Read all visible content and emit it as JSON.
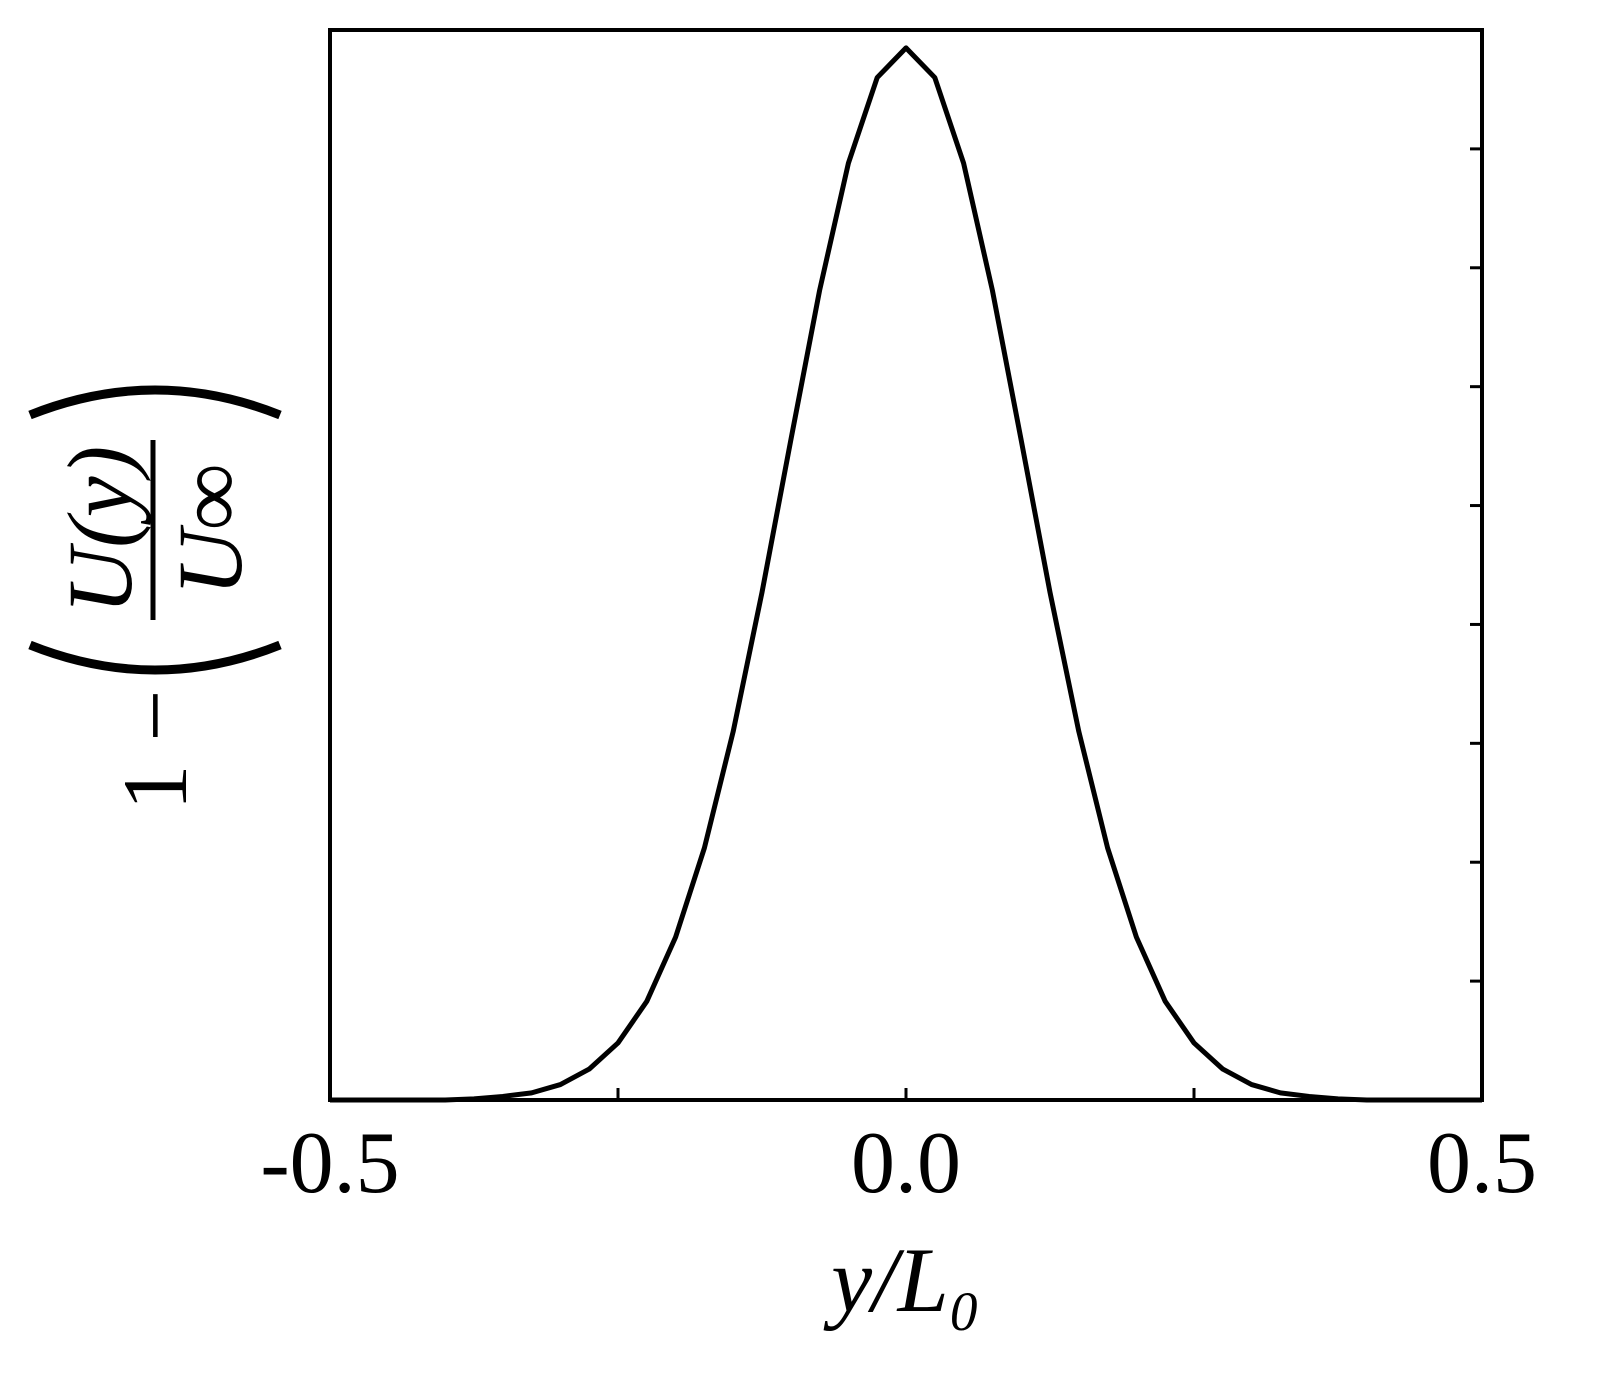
{
  "chart_data": {
    "type": "line",
    "xlabel": "y/L₀",
    "ylabel": {
      "prefix": "1 −",
      "numerator": "U(y)",
      "denominator": "U∞"
    },
    "x": [
      -0.5,
      -0.475,
      -0.45,
      -0.425,
      -0.4,
      -0.375,
      -0.35,
      -0.325,
      -0.3,
      -0.275,
      -0.25,
      -0.225,
      -0.2,
      -0.175,
      -0.15,
      -0.125,
      -0.1,
      -0.075,
      -0.05,
      -0.025,
      0,
      0.025,
      0.05,
      0.075,
      0.1,
      0.125,
      0.15,
      0.175,
      0.2,
      0.225,
      0.25,
      0.275,
      0.3,
      0.325,
      0.35,
      0.375,
      0.4,
      0.425,
      0.45,
      0.475,
      0.5
    ],
    "series": [
      {
        "color": "#000000",
        "values": [
          0,
          0,
          0,
          0,
          0,
          0.001,
          0.003,
          0.006,
          0.013,
          0.026,
          0.048,
          0.083,
          0.137,
          0.212,
          0.31,
          0.427,
          0.555,
          0.681,
          0.788,
          0.86,
          0.885,
          0.86,
          0.788,
          0.681,
          0.555,
          0.427,
          0.31,
          0.212,
          0.137,
          0.083,
          0.048,
          0.026,
          0.013,
          0.006,
          0.003,
          0.001,
          0,
          0,
          0,
          0,
          0
        ]
      }
    ],
    "xlim": [
      -0.5,
      0.5
    ],
    "xticks": [
      {
        "value": -0.5,
        "label": "-0.5"
      },
      {
        "value": 0,
        "label": "0.0"
      },
      {
        "value": 0.5,
        "label": "0.5"
      }
    ],
    "xticks_minor": [
      -0.25,
      0.25
    ],
    "ylim": [
      0,
      0.9
    ],
    "yticks": [
      0.1,
      0.2,
      0.3,
      0.4,
      0.5,
      0.6,
      0.7,
      0.8
    ]
  }
}
